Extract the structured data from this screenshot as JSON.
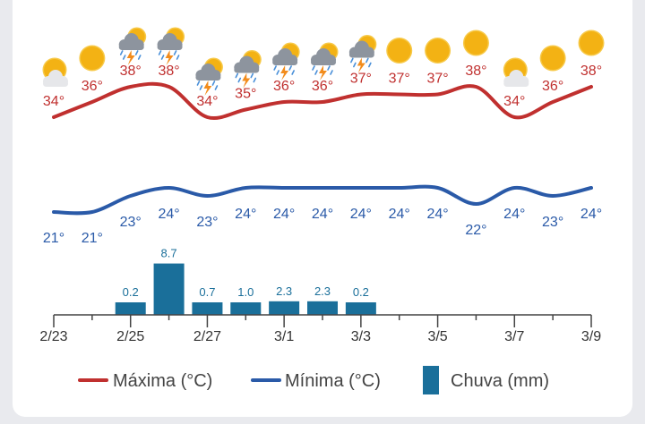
{
  "chart_data": {
    "type": "line+bar",
    "days": [
      "2/23",
      "2/24",
      "2/25",
      "2/26",
      "2/27",
      "2/28",
      "3/1",
      "3/2",
      "3/3",
      "3/4",
      "3/5",
      "3/6",
      "3/7",
      "3/8",
      "3/9"
    ],
    "tick_labels": [
      "2/23",
      "2/25",
      "2/27",
      "3/1",
      "3/3",
      "3/5",
      "3/7",
      "3/9"
    ],
    "tick_days": [
      "2/23",
      "2/25",
      "2/27",
      "3/1",
      "3/3",
      "3/5",
      "3/7",
      "3/9"
    ],
    "series": [
      {
        "name": "Máxima (°C)",
        "type": "line",
        "color": "#c0302f",
        "values": [
          34,
          36,
          38,
          38,
          34,
          35,
          36,
          36,
          37,
          37,
          37,
          38,
          34,
          36,
          38
        ]
      },
      {
        "name": "Mínima (°C)",
        "type": "line",
        "color": "#2a5aa8",
        "values": [
          21,
          21,
          23,
          24,
          23,
          24,
          24,
          24,
          24,
          24,
          24,
          22,
          24,
          23,
          24
        ]
      },
      {
        "name": "Chuva (mm)",
        "type": "bar",
        "color": "#1a6f9a",
        "values": [
          0,
          0,
          0.2,
          8.7,
          0.7,
          1.0,
          2.3,
          2.3,
          0.2,
          0,
          0,
          0,
          0,
          0,
          0
        ],
        "labels": [
          "",
          "",
          "0.2",
          "8.7",
          "0.7",
          "1.0",
          "2.3",
          "2.3",
          "0.2",
          "",
          "",
          "",
          "",
          "",
          ""
        ]
      }
    ],
    "temp_label_suffix": "°",
    "icons": [
      "partly-cloudy",
      "sunny",
      "storm",
      "storm",
      "storm",
      "storm",
      "storm",
      "storm",
      "storm",
      "sunny",
      "sunny",
      "sunny",
      "partly-cloudy",
      "sunny",
      "sunny"
    ],
    "legend_position": "bottom"
  }
}
